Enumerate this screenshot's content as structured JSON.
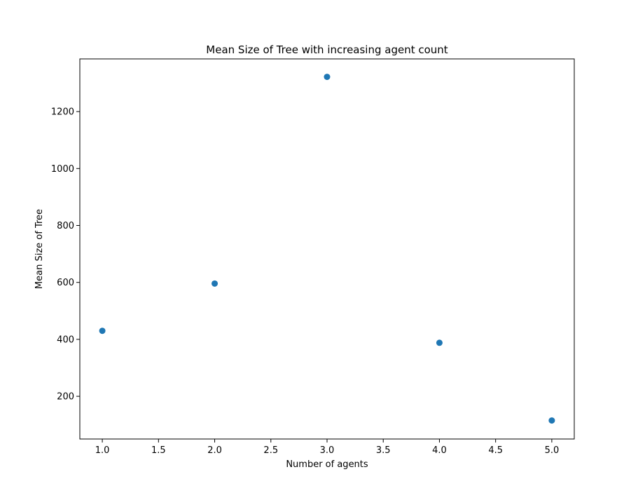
{
  "chart_data": {
    "type": "scatter",
    "title": "Mean Size of Tree with increasing agent count",
    "xlabel": "Number of agents",
    "ylabel": "Mean Size of Tree",
    "xlim": [
      0.8,
      5.2
    ],
    "ylim": [
      50,
      1385
    ],
    "x_ticks": [
      1.0,
      1.5,
      2.0,
      2.5,
      3.0,
      3.5,
      4.0,
      4.5,
      5.0
    ],
    "x_tick_labels": [
      "1.0",
      "1.5",
      "2.0",
      "2.5",
      "3.0",
      "3.5",
      "4.0",
      "4.5",
      "5.0"
    ],
    "y_ticks": [
      200,
      400,
      600,
      800,
      1000,
      1200
    ],
    "y_tick_labels": [
      "200",
      "400",
      "600",
      "800",
      "1000",
      "1200"
    ],
    "series": [
      {
        "x": [
          1,
          2,
          3,
          4,
          5
        ],
        "y": [
          430,
          596,
          1322,
          388,
          115
        ],
        "color": "#1f77b4"
      }
    ],
    "grid": false,
    "legend": "none"
  }
}
